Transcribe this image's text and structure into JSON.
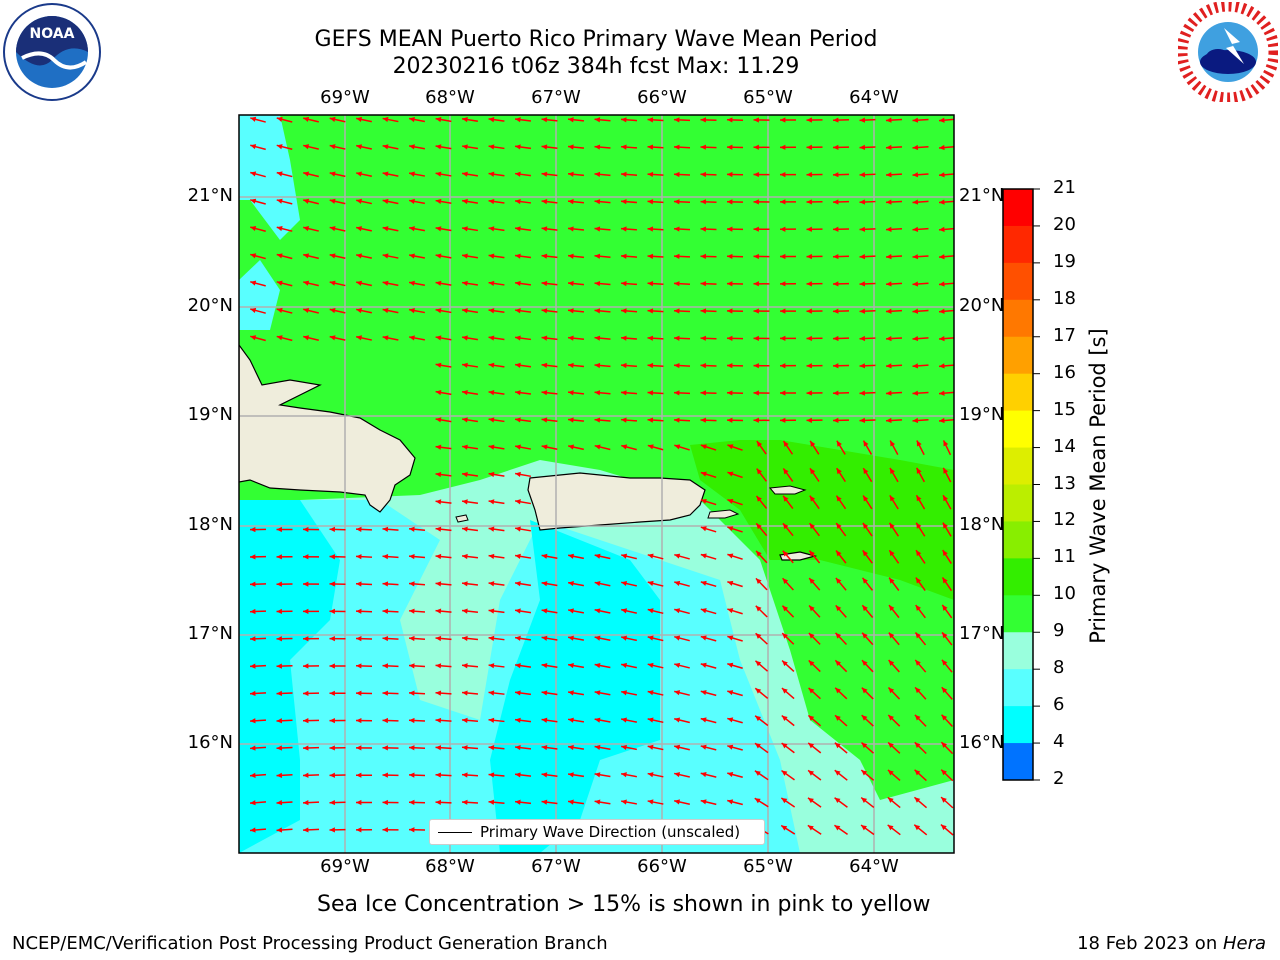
{
  "title": {
    "line1": "GEFS MEAN Puerto Rico Primary Wave Mean Period",
    "line2": "20230216 t06z 384h fcst   Max: 11.29"
  },
  "logos": {
    "left": {
      "text": "NOAA",
      "icon": "noaa-logo-icon"
    },
    "right": {
      "icon": "nws-logo-icon"
    }
  },
  "map": {
    "lon_ticks": [
      "69°W",
      "68°W",
      "67°W",
      "66°W",
      "65°W",
      "64°W"
    ],
    "lat_ticks": [
      "21°N",
      "20°N",
      "19°N",
      "18°N",
      "17°N",
      "16°N"
    ],
    "land_color": "#efeddc",
    "legend_label": "Primary Wave Direction (unscaled)",
    "arrow_color": "#ff0000"
  },
  "colorbar": {
    "label": "Primary Wave Mean Period [s]",
    "ticks": [
      "2",
      "4",
      "6",
      "8",
      "9",
      "10",
      "11",
      "12",
      "13",
      "14",
      "15",
      "16",
      "17",
      "18",
      "19",
      "20",
      "21"
    ],
    "colors": [
      "#0000ff",
      "#0073ff",
      "#00ffff",
      "#59ffff",
      "#99ffdd",
      "#33ff33",
      "#33ee00",
      "#88ee00",
      "#bbee00",
      "#ddee00",
      "#ffff00",
      "#ffd000",
      "#ffa000",
      "#ff7800",
      "#ff5000",
      "#ff2800",
      "#ff0000"
    ]
  },
  "note": "Sea Ice Concentration > 15% is shown in pink to yellow",
  "footer": {
    "left": "NCEP/EMC/Verification Post Processing Product Generation Branch",
    "right_prefix": "18 Feb 2023 on ",
    "right_italic": "Hera"
  }
}
